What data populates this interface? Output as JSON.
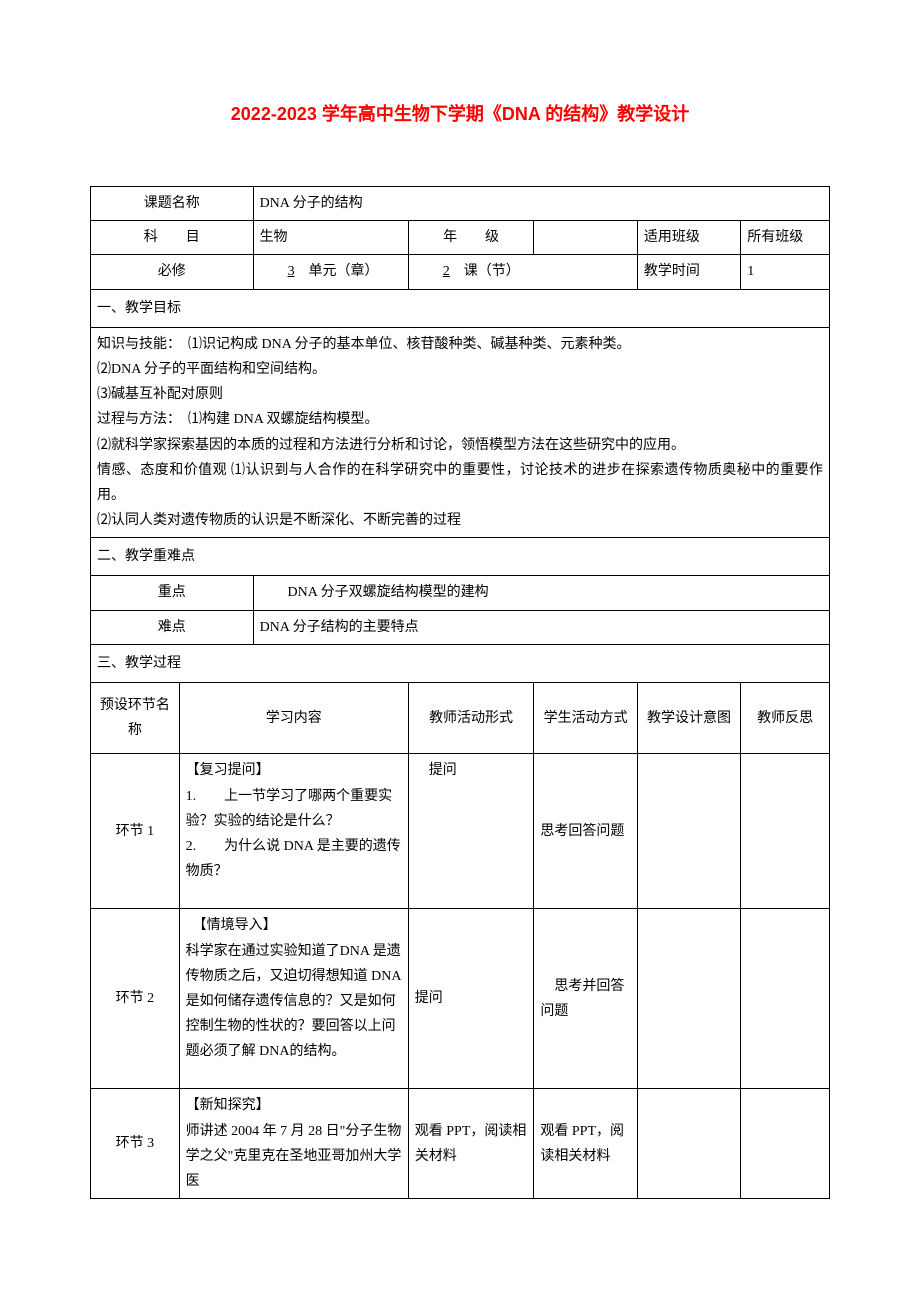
{
  "title": "2022-2023 学年高中生物下学期《DNA 的结构》教学设计",
  "row1": {
    "label": "课题名称",
    "value": "DNA 分子的结构"
  },
  "row2": {
    "subject_label": "科　　目",
    "subject_value": "生物",
    "grade_label": "年　　级",
    "grade_value": "",
    "class_label": "适用班级",
    "class_value": "所有班级"
  },
  "row3": {
    "compulsory_label": "必修",
    "unit_prefix": "　　",
    "unit_num": "3",
    "unit_suffix": "　单元（章）",
    "lesson_prefix": "　　",
    "lesson_num": "2",
    "lesson_suffix": "　课（节）",
    "time_label": "教学时间",
    "time_value": "1"
  },
  "section1": {
    "heading": "一、教学目标",
    "body": "知识与技能：　⑴识记构成 DNA 分子的基本单位、核苷酸种类、碱基种类、元素种类。\n⑵DNA 分子的平面结构和空间结构。\n⑶碱基互补配对原则\n过程与方法：　⑴构建 DNA 双螺旋结构模型。\n⑵就科学家探索基因的本质的过程和方法进行分析和讨论，领悟模型方法在这些研究中的应用。\n情感、态度和价值观 ⑴认识到与人合作的在科学研究中的重要性，讨论技术的进步在探索遗传物质奥秘中的重要作用。\n⑵认同人类对遗传物质的认识是不断深化、不断完善的过程"
  },
  "section2": {
    "heading": "二、教学重难点",
    "key_label": "重点",
    "key_value": "　　DNA 分子双螺旋结构模型的建构",
    "diff_label": "难点",
    "diff_value": "DNA 分子结构的主要特点"
  },
  "section3": {
    "heading": "三、教学过程",
    "headers": {
      "stage": "预设环节名称",
      "content": "学习内容",
      "teacher": "教师活动形式",
      "student": "学生活动方式",
      "intent": "教学设计意图",
      "reflect": "教师反思"
    },
    "stages": [
      {
        "name": "环节 1",
        "content": "【复习提问】\n1.　　上一节学习了哪两个重要实验？实验的结论是什么？\n2.　　为什么说 DNA 是主要的遗传物质？",
        "teacher": "　提问",
        "student": "思考回答问题",
        "intent": "",
        "reflect": ""
      },
      {
        "name": "环节 2",
        "content": "　【情境导入】\n科学家在通过实验知道了DNA 是遗传物质之后，又迫切得想知道 DNA 是如何储存遗传信息的？又是如何控制生物的性状的？要回答以上问题必须了解 DNA的结构。",
        "teacher": "提问",
        "student": "　思考并回答问题",
        "intent": "",
        "reflect": ""
      },
      {
        "name": "环节 3",
        "content": "【新知探究】\n师讲述 2004 年 7 月 28 日\"分子生物学之父\"克里克在圣地亚哥加州大学医",
        "teacher": "观看 PPT，阅读相关材料",
        "student": "观看 PPT，阅读相关材料",
        "intent": "",
        "reflect": ""
      }
    ]
  }
}
